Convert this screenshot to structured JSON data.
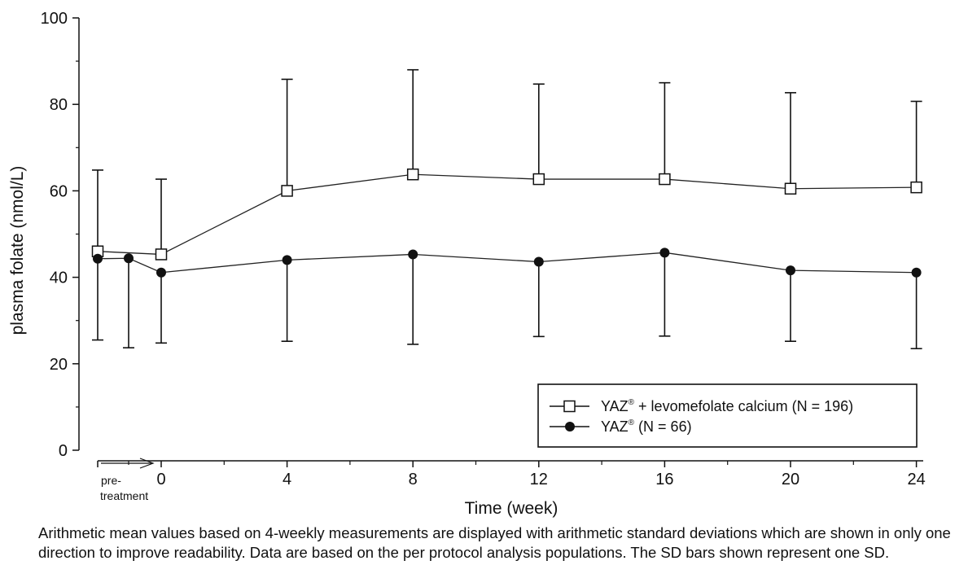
{
  "chart_data": {
    "type": "line",
    "ylabel": "plasma folate (nmol/L)",
    "xlabel": "Time (week)",
    "ylim": [
      0,
      100
    ],
    "yticks": [
      "0",
      "20",
      "40",
      "60",
      "80",
      "100"
    ],
    "xticks": [
      "0",
      "4",
      "8",
      "12",
      "16",
      "20",
      "24"
    ],
    "pretreatment_label": [
      "pre-",
      "treatment"
    ],
    "x": [
      "pre-treatment",
      "pre-treatment",
      "0",
      "4",
      "8",
      "12",
      "16",
      "20",
      "24"
    ],
    "series": [
      {
        "name": "YAZ® + levomefolate calcium (N = 196)",
        "marker": "open-square",
        "x": [
          "pre-treatment",
          "0",
          "4",
          "8",
          "12",
          "16",
          "20",
          "24"
        ],
        "values": [
          46,
          45.3,
          60,
          63.8,
          62.7,
          62.7,
          60.5,
          60.8
        ],
        "sd_upper": [
          64.8,
          62.7,
          85.8,
          88,
          84.7,
          85,
          82.7,
          80.7
        ]
      },
      {
        "name": "YAZ® (N = 66)",
        "marker": "filled-circle",
        "x": [
          "pre-treatment",
          "pre-treatment",
          "0",
          "4",
          "8",
          "12",
          "16",
          "20",
          "24"
        ],
        "values": [
          44.3,
          44.4,
          41.1,
          44,
          45.3,
          43.6,
          45.7,
          41.6,
          41.1
        ],
        "sd_lower": [
          25.5,
          23.7,
          24.8,
          25.2,
          24.5,
          26.3,
          26.4,
          25.2,
          23.5
        ]
      }
    ],
    "legend": {
      "placement": "bottom-right",
      "entries": [
        {
          "text": "YAZ",
          "sup": "®",
          "rest": " + levomefolate calcium (N = 196)"
        },
        {
          "text": "YAZ",
          "sup": "®",
          "rest": " (N = 66)"
        }
      ]
    },
    "grid": false
  },
  "caption": "Arithmetic mean values based on 4-weekly measurements are displayed with arithmetic standard deviations which are shown in only one direction to improve readability. Data are based on the per protocol analysis populations. The SD bars shown represent one SD."
}
